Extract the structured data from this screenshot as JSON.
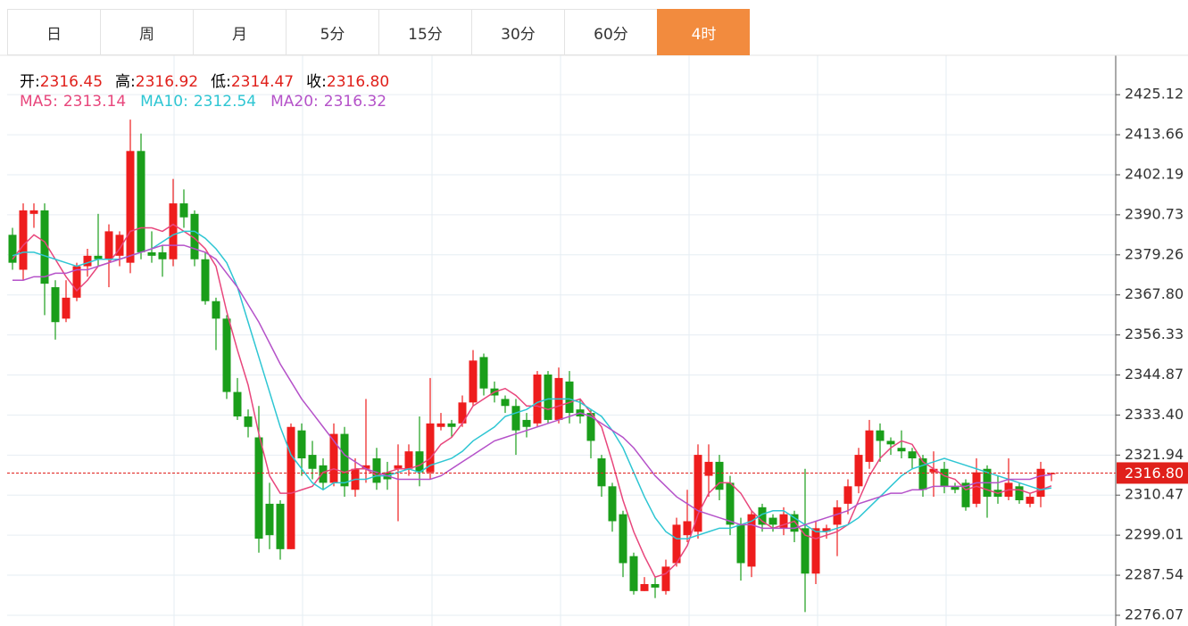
{
  "tabs": {
    "items": [
      "日",
      "周",
      "月",
      "5分",
      "15分",
      "30分",
      "60分",
      "4时"
    ],
    "active": 7
  },
  "chart_data": {
    "type": "candlestick",
    "info": [
      {
        "label": "开:",
        "value": "2316.45"
      },
      {
        "label": "高:",
        "value": "2316.92"
      },
      {
        "label": "低:",
        "value": "2314.47"
      },
      {
        "label": "收:",
        "value": "2316.80"
      }
    ],
    "up_color": "#ee1d1d",
    "down_color": "#1a9e1a",
    "ylim": [
      2273.0,
      2436.4
    ],
    "yticks": [
      {
        "value": 2276.07,
        "label": "2276.07"
      },
      {
        "value": 2287.54,
        "label": "2287.54"
      },
      {
        "value": 2299.01,
        "label": "2299.01"
      },
      {
        "value": 2310.47,
        "label": "2310.47"
      },
      {
        "value": 2321.94,
        "label": "2321.94"
      },
      {
        "value": 2333.4,
        "label": "2333.40"
      },
      {
        "value": 2344.87,
        "label": "2344.87"
      },
      {
        "value": 2356.33,
        "label": "2356.33"
      },
      {
        "value": 2367.8,
        "label": "2367.80"
      },
      {
        "value": 2379.26,
        "label": "2379.26"
      },
      {
        "value": 2390.73,
        "label": "2390.73"
      },
      {
        "value": 2402.19,
        "label": "2402.19"
      },
      {
        "value": 2413.66,
        "label": "2413.66"
      },
      {
        "value": 2425.12,
        "label": "2425.12"
      }
    ],
    "grid": true,
    "current_price": {
      "value": 2316.8,
      "label": "2316.80"
    },
    "candles": [
      [
        2385,
        2387,
        2375,
        2377
      ],
      [
        2375,
        2394,
        2372,
        2392
      ],
      [
        2391,
        2394,
        2387,
        2392
      ],
      [
        2392,
        2394,
        2362,
        2371
      ],
      [
        2370,
        2372,
        2355,
        2360
      ],
      [
        2361,
        2372,
        2360,
        2367
      ],
      [
        2367,
        2377,
        2366,
        2376
      ],
      [
        2376,
        2381,
        2373,
        2379
      ],
      [
        2379,
        2391,
        2376,
        2378
      ],
      [
        2378,
        2388,
        2370,
        2386
      ],
      [
        2379,
        2386,
        2376,
        2385
      ],
      [
        2377,
        2418,
        2374,
        2409
      ],
      [
        2409,
        2414,
        2378,
        2380
      ],
      [
        2380,
        2386,
        2377,
        2379
      ],
      [
        2380,
        2382,
        2373,
        2378
      ],
      [
        2378,
        2401,
        2376,
        2394
      ],
      [
        2394,
        2398,
        2387,
        2390
      ],
      [
        2391,
        2392,
        2376,
        2378
      ],
      [
        2378,
        2380,
        2365,
        2366
      ],
      [
        2366,
        2367,
        2352,
        2361
      ],
      [
        2361,
        2362,
        2338,
        2340
      ],
      [
        2340,
        2344,
        2332,
        2333
      ],
      [
        2333,
        2335,
        2327,
        2330
      ],
      [
        2327,
        2336,
        2294,
        2298
      ],
      [
        2308,
        2314,
        2295,
        2299
      ],
      [
        2308,
        2309,
        2292,
        2295
      ],
      [
        2295,
        2331,
        2295,
        2330
      ],
      [
        2329,
        2331,
        2316,
        2321
      ],
      [
        2322,
        2326,
        2315,
        2318
      ],
      [
        2319,
        2321,
        2312,
        2314
      ],
      [
        2314,
        2331,
        2313,
        2328
      ],
      [
        2328,
        2330,
        2310,
        2313
      ],
      [
        2312,
        2321,
        2310,
        2318
      ],
      [
        2318,
        2338,
        2314,
        2319
      ],
      [
        2321,
        2324,
        2312,
        2314
      ],
      [
        2317,
        2320,
        2312,
        2315
      ],
      [
        2318,
        2325,
        2303,
        2319
      ],
      [
        2318,
        2325,
        2316,
        2323
      ],
      [
        2323,
        2333,
        2313,
        2317
      ],
      [
        2317,
        2344,
        2315,
        2331
      ],
      [
        2330,
        2334,
        2329,
        2331
      ],
      [
        2331,
        2332,
        2327,
        2330
      ],
      [
        2331,
        2339,
        2330,
        2337
      ],
      [
        2337,
        2352,
        2336,
        2349
      ],
      [
        2350,
        2351,
        2339,
        2341
      ],
      [
        2341,
        2343,
        2337,
        2339
      ],
      [
        2338,
        2339,
        2334,
        2336
      ],
      [
        2336,
        2338,
        2322,
        2329
      ],
      [
        2332,
        2334,
        2327,
        2330
      ],
      [
        2331,
        2346,
        2330,
        2345
      ],
      [
        2345,
        2346,
        2331,
        2332
      ],
      [
        2332,
        2347,
        2331,
        2344
      ],
      [
        2343,
        2346,
        2331,
        2334
      ],
      [
        2335,
        2338,
        2331,
        2333
      ],
      [
        2334,
        2335,
        2321,
        2326
      ],
      [
        2321,
        2322,
        2310,
        2313
      ],
      [
        2313,
        2314,
        2300,
        2303
      ],
      [
        2305,
        2306,
        2287,
        2291
      ],
      [
        2293,
        2294,
        2282,
        2283
      ],
      [
        2283,
        2287,
        2283,
        2285
      ],
      [
        2285,
        2287,
        2281,
        2284
      ],
      [
        2283,
        2292,
        2282,
        2290
      ],
      [
        2291,
        2304,
        2290,
        2302
      ],
      [
        2299,
        2312,
        2297,
        2303
      ],
      [
        2300,
        2325,
        2298,
        2322
      ],
      [
        2316,
        2325,
        2310,
        2320
      ],
      [
        2320,
        2322,
        2309,
        2312
      ],
      [
        2314,
        2316,
        2299,
        2302
      ],
      [
        2302,
        2304,
        2286,
        2291
      ],
      [
        2290,
        2306,
        2287,
        2305
      ],
      [
        2307,
        2308,
        2300,
        2302
      ],
      [
        2304,
        2305,
        2300,
        2302
      ],
      [
        2301,
        2307,
        2299,
        2305
      ],
      [
        2305,
        2306,
        2297,
        2300
      ],
      [
        2301,
        2318,
        2277,
        2288
      ],
      [
        2288,
        2303,
        2285,
        2301
      ],
      [
        2300,
        2302,
        2298,
        2301
      ],
      [
        2302,
        2309,
        2293,
        2307
      ],
      [
        2308,
        2315,
        2305,
        2313
      ],
      [
        2313,
        2324,
        2311,
        2322
      ],
      [
        2320,
        2332,
        2318,
        2329
      ],
      [
        2329,
        2331,
        2320,
        2326
      ],
      [
        2326,
        2327,
        2322,
        2325
      ],
      [
        2324,
        2329,
        2321,
        2323
      ],
      [
        2323,
        2324,
        2318,
        2321
      ],
      [
        2321,
        2322,
        2310,
        2312
      ],
      [
        2317,
        2323,
        2310,
        2318
      ],
      [
        2318,
        2320,
        2311,
        2313
      ],
      [
        2313,
        2314,
        2311,
        2312
      ],
      [
        2314,
        2315,
        2306,
        2307
      ],
      [
        2308,
        2321,
        2307,
        2317
      ],
      [
        2318,
        2319,
        2304,
        2310
      ],
      [
        2312,
        2316,
        2308,
        2310
      ],
      [
        2310,
        2321,
        2309,
        2314
      ],
      [
        2313,
        2314,
        2308,
        2309
      ],
      [
        2308,
        2311,
        2307,
        2310
      ],
      [
        2310,
        2320,
        2307,
        2318
      ],
      [
        2316.45,
        2316.92,
        2314.47,
        2316.8
      ]
    ],
    "series": [
      {
        "name": "MA5:",
        "color": "#e8467c",
        "legend_value": "2313.14",
        "values": [
          2378,
          2382,
          2385,
          2383,
          2378,
          2373,
          2369,
          2372,
          2376,
          2377,
          2381,
          2386,
          2387,
          2387,
          2386,
          2388,
          2386,
          2384,
          2381,
          2376,
          2363,
          2352,
          2342,
          2328,
          2316,
          2311,
          2311,
          2312,
          2313,
          2317,
          2318,
          2317,
          2318,
          2318,
          2316,
          2317,
          2318,
          2318,
          2319,
          2321,
          2325,
          2327,
          2331,
          2336,
          2338,
          2340,
          2341,
          2339,
          2336,
          2336,
          2335,
          2336,
          2337,
          2338,
          2334,
          2330,
          2320,
          2309,
          2300,
          2293,
          2287,
          2288,
          2291,
          2296,
          2305,
          2311,
          2314,
          2314,
          2311,
          2306,
          2303,
          2301,
          2302,
          2303,
          2299,
          2298,
          2299,
          2300,
          2302,
          2309,
          2316,
          2321,
          2324,
          2326,
          2325,
          2320,
          2318,
          2316,
          2315,
          2312,
          2313,
          2312,
          2311,
          2312,
          2312,
          2311,
          2312,
          2313.14
        ]
      },
      {
        "name": "MA10:",
        "color": "#2ec6d3",
        "legend_value": "2312.54",
        "values": [
          2379,
          2380,
          2380,
          2379,
          2378,
          2377,
          2376,
          2377,
          2378,
          2378,
          2378,
          2379,
          2380,
          2381,
          2383,
          2385,
          2386,
          2386,
          2384,
          2381,
          2377,
          2370,
          2360,
          2350,
          2340,
          2330,
          2322,
          2318,
          2314,
          2312,
          2314,
          2314,
          2315,
          2315,
          2316,
          2316,
          2317,
          2318,
          2317,
          2319,
          2320,
          2321,
          2323,
          2326,
          2328,
          2330,
          2333,
          2334,
          2335,
          2337,
          2338,
          2338,
          2338,
          2337,
          2335,
          2333,
          2329,
          2324,
          2317,
          2310,
          2304,
          2300,
          2298,
          2298,
          2299,
          2300,
          2301,
          2301,
          2302,
          2303,
          2305,
          2306,
          2306,
          2304,
          2302,
          2300,
          2300,
          2301,
          2302,
          2304,
          2307,
          2310,
          2313,
          2316,
          2318,
          2319,
          2320,
          2321,
          2320,
          2319,
          2318,
          2317,
          2316,
          2315,
          2314,
          2313,
          2312,
          2312.54
        ]
      },
      {
        "name": "MA20:",
        "color": "#b552c9",
        "legend_value": "2316.32",
        "values": [
          2372,
          2372,
          2373,
          2373,
          2374,
          2374,
          2375,
          2375,
          2376,
          2377,
          2378,
          2379,
          2380,
          2381,
          2382,
          2382,
          2382,
          2381,
          2380,
          2378,
          2374,
          2370,
          2365,
          2360,
          2354,
          2348,
          2343,
          2338,
          2334,
          2330,
          2326,
          2322,
          2320,
          2318,
          2317,
          2316,
          2315,
          2315,
          2315,
          2315,
          2316,
          2318,
          2320,
          2322,
          2324,
          2326,
          2327,
          2328,
          2329,
          2330,
          2331,
          2332,
          2333,
          2334,
          2333,
          2331,
          2329,
          2327,
          2324,
          2320,
          2316,
          2313,
          2310,
          2308,
          2306,
          2305,
          2304,
          2303,
          2302,
          2302,
          2301,
          2301,
          2301,
          2301,
          2302,
          2303,
          2304,
          2305,
          2306,
          2308,
          2309,
          2310,
          2311,
          2311,
          2312,
          2312,
          2313,
          2313,
          2313,
          2313,
          2314,
          2314,
          2314,
          2315,
          2315,
          2315,
          2316,
          2316.32
        ]
      }
    ]
  }
}
